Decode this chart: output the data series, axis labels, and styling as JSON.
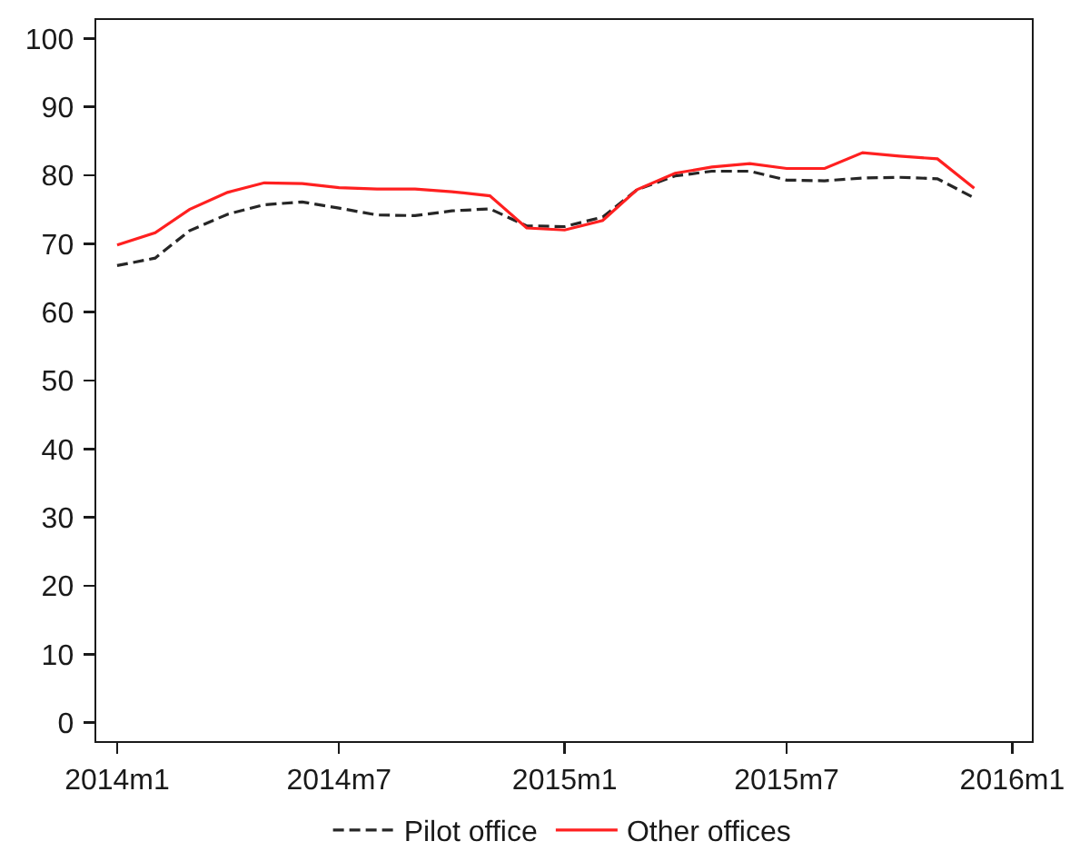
{
  "chart_data": {
    "type": "line",
    "x": [
      "2014-01",
      "2014-02",
      "2014-03",
      "2014-04",
      "2014-05",
      "2014-06",
      "2014-07",
      "2014-08",
      "2014-09",
      "2014-10",
      "2014-11",
      "2014-12",
      "2015-01",
      "2015-02",
      "2015-03",
      "2015-04",
      "2015-05",
      "2015-06",
      "2015-07",
      "2015-08",
      "2015-09",
      "2015-10",
      "2015-11",
      "2015-12"
    ],
    "series": [
      {
        "name": "Pilot office",
        "color": "#262626",
        "line_style": "dashed",
        "values": [
          66.8,
          67.9,
          71.9,
          74.3,
          75.7,
          76.1,
          75.2,
          74.2,
          74.1,
          74.8,
          75.1,
          72.6,
          72.5,
          73.9,
          77.9,
          79.9,
          80.6,
          80.6,
          79.3,
          79.2,
          79.6,
          79.7,
          79.5,
          76.7
        ]
      },
      {
        "name": "Other offices",
        "color": "#ff2020",
        "line_style": "solid",
        "values": [
          69.8,
          71.6,
          75.0,
          77.5,
          78.9,
          78.8,
          78.2,
          78.0,
          78.0,
          77.6,
          77.0,
          72.3,
          72.0,
          73.4,
          77.9,
          80.3,
          81.2,
          81.7,
          81.0,
          81.0,
          83.3,
          82.8,
          82.4,
          78.1
        ]
      }
    ],
    "xlim": [
      "2013-12-15",
      "2016-01-17"
    ],
    "xticks": [
      {
        "value": "2014-01",
        "label": "2014m1"
      },
      {
        "value": "2014-07",
        "label": "2014m7"
      },
      {
        "value": "2015-01",
        "label": "2015m1"
      },
      {
        "value": "2015-07",
        "label": "2015m7"
      },
      {
        "value": "2016-01",
        "label": "2016m1"
      }
    ],
    "ylim": [
      -2.7,
      102.7
    ],
    "yticks": [
      0,
      10,
      20,
      30,
      40,
      50,
      60,
      70,
      80,
      90,
      100
    ],
    "legend": "bottom"
  }
}
